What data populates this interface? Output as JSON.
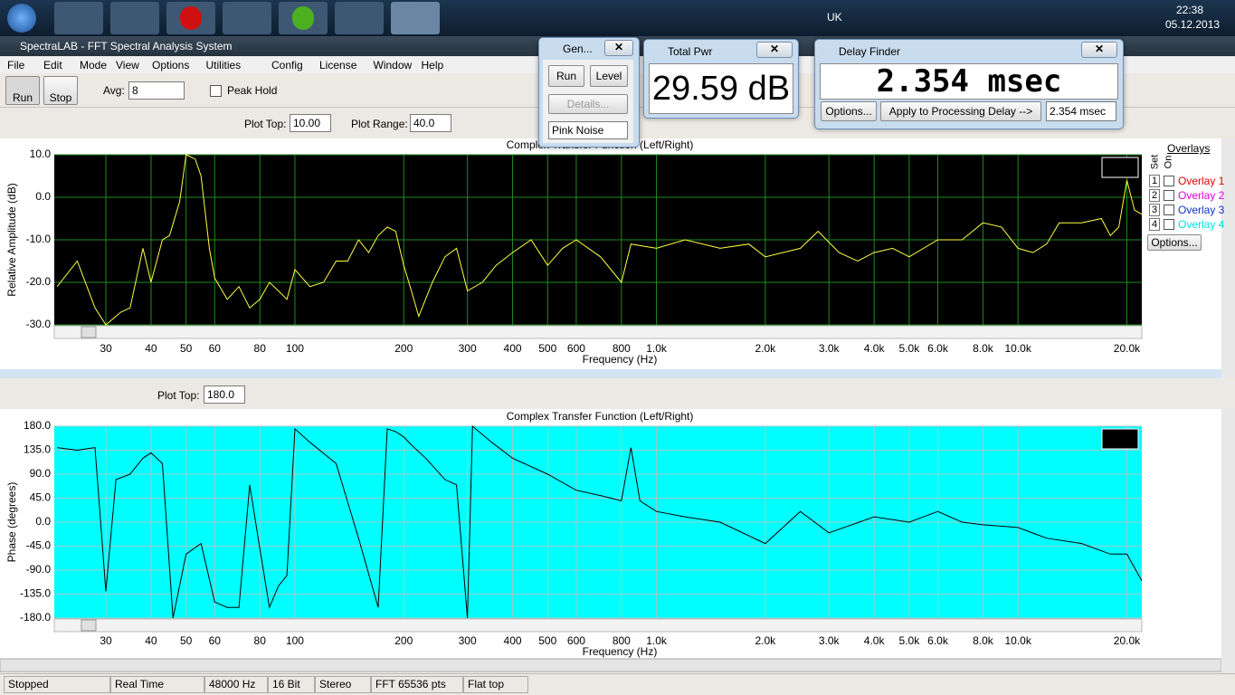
{
  "taskbar": {
    "language": "UK",
    "clock": "22:38",
    "date": "05.12.2013"
  },
  "window": {
    "title": "SpectraLAB - FFT Spectral Analysis System",
    "menu": [
      "File",
      "Edit",
      "Mode",
      "View",
      "Options",
      "Utilities",
      "Config",
      "License",
      "Window",
      "Help"
    ]
  },
  "toolbar": {
    "run": "Run",
    "stop": "Stop",
    "avg_label": "Avg:",
    "avg_value": "8",
    "peak_hold": "Peak Hold",
    "plot_top_label": "Plot Top:",
    "plot_top_value": "10.00",
    "plot_range_label": "Plot Range:",
    "plot_range_value": "40.0"
  },
  "toolbar2": {
    "plot_top_label": "Plot Top:",
    "plot_top_value": "180.0"
  },
  "generator": {
    "title": "Gen...",
    "run": "Run",
    "level": "Level",
    "details": "Details...",
    "signal": "Pink Noise"
  },
  "total_power": {
    "title": "Total Pwr",
    "value": "29.59 dB"
  },
  "delay_finder": {
    "title": "Delay Finder",
    "value": "2.354 msec",
    "options": "Options...",
    "apply": "Apply to Processing Delay -->",
    "result": "2.354 msec"
  },
  "overlays": {
    "title": "Overlays",
    "set": "Set",
    "on": "On",
    "options": "Options...",
    "items": [
      {
        "number": "1",
        "label": "Overlay 1",
        "color": "#e00000"
      },
      {
        "number": "2",
        "label": "Overlay 2",
        "color": "#e000e0"
      },
      {
        "number": "3",
        "label": "Overlay 3",
        "color": "#1030d0"
      },
      {
        "number": "4",
        "label": "Overlay 4",
        "color": "#00e0e0"
      }
    ]
  },
  "status_bar": [
    "Stopped",
    "Real Time",
    "48000 Hz",
    "16 Bit",
    "Stereo",
    "FFT 65536 pts",
    "Flat top"
  ],
  "chart_data": [
    {
      "type": "line",
      "title": "Complex Transfer Function (Left/Right)",
      "x_label": "Frequency (Hz)",
      "y_label": "Relative Amplitude (dB)",
      "log_x": true,
      "grid": true,
      "background": "#000000",
      "grid_color": "#1e8c1e",
      "color": "#ffff40",
      "xlim": [
        21.6,
        22000
      ],
      "ylim": [
        -30,
        10
      ],
      "yticks": [
        {
          "value": -30,
          "label": "-30.0"
        },
        {
          "value": -20,
          "label": "-20.0"
        },
        {
          "value": -10,
          "label": "-10.0"
        },
        {
          "value": 0,
          "label": "0.0"
        },
        {
          "value": 10,
          "label": "10.0"
        }
      ],
      "xticks": [
        30,
        40,
        50,
        60,
        80,
        100,
        200,
        300,
        400,
        500,
        600,
        800,
        {
          "value": 1000,
          "label": "1.0k"
        },
        {
          "value": 2000,
          "label": "2.0k"
        },
        {
          "value": 3000,
          "label": "3.0k"
        },
        {
          "value": 4000,
          "label": "4.0k"
        },
        {
          "value": 5000,
          "label": "5.0k"
        },
        {
          "value": 6000,
          "label": "6.0k"
        },
        {
          "value": 8000,
          "label": "8.0k"
        },
        {
          "value": 10000,
          "label": "10.0k"
        },
        {
          "value": 20000,
          "label": "20.0k"
        }
      ],
      "x": [
        22,
        25,
        28,
        30,
        33,
        35,
        38,
        40,
        43,
        45,
        48,
        50,
        53,
        55,
        58,
        60,
        65,
        70,
        75,
        80,
        85,
        90,
        95,
        100,
        110,
        120,
        130,
        140,
        150,
        160,
        170,
        180,
        190,
        200,
        210,
        220,
        240,
        260,
        280,
        300,
        330,
        360,
        400,
        450,
        500,
        550,
        600,
        700,
        800,
        850,
        1000,
        1200,
        1500,
        1800,
        2000,
        2500,
        2800,
        3200,
        3600,
        4000,
        4500,
        5000,
        6000,
        7000,
        8000,
        9000,
        10000,
        11000,
        12000,
        13000,
        15000,
        17000,
        18000,
        19000,
        20000,
        21000,
        22000
      ],
      "values": [
        -21,
        -15,
        -26,
        -30,
        -27,
        -26,
        -12,
        -20,
        -10,
        -9,
        -1,
        10,
        9,
        5,
        -12,
        -19,
        -24,
        -21,
        -26,
        -24,
        -20,
        -22,
        -24,
        -17,
        -21,
        -20,
        -15,
        -15,
        -10,
        -13,
        -9,
        -7,
        -8,
        -16,
        -22,
        -28,
        -20,
        -14,
        -12,
        -22,
        -20,
        -16,
        -13,
        -10,
        -16,
        -12,
        -10,
        -14,
        -20,
        -11,
        -12,
        -10,
        -12,
        -11,
        -14,
        -12,
        -8,
        -13,
        -15,
        -13,
        -12,
        -14,
        -10,
        -10,
        -6,
        -7,
        -12,
        -13,
        -11,
        -6,
        -6,
        -5,
        -9,
        -7,
        4,
        -3,
        -4
      ]
    },
    {
      "type": "line",
      "title": "Complex Transfer Function (Left/Right)",
      "x_label": "Frequency (Hz)",
      "y_label": "Phase (degrees)",
      "log_x": true,
      "grid": true,
      "background": "#00ffff",
      "grid_color": "#a0c8c8",
      "color": "#000000",
      "xlim": [
        21.6,
        22000
      ],
      "ylim": [
        -180,
        180
      ],
      "yticks": [
        {
          "value": -180,
          "label": "-180.0"
        },
        {
          "value": -135,
          "label": "-135.0"
        },
        {
          "value": -90,
          "label": "-90.0"
        },
        {
          "value": -45,
          "label": "-45.0"
        },
        {
          "value": 0,
          "label": "0.0"
        },
        {
          "value": 45,
          "label": "45.0"
        },
        {
          "value": 90,
          "label": "90.0"
        },
        {
          "value": 135,
          "label": "135.0"
        },
        {
          "value": 180,
          "label": "180.0"
        }
      ],
      "xticks": [
        30,
        40,
        50,
        60,
        80,
        100,
        200,
        300,
        400,
        500,
        600,
        800,
        {
          "value": 1000,
          "label": "1.0k"
        },
        {
          "value": 2000,
          "label": "2.0k"
        },
        {
          "value": 3000,
          "label": "3.0k"
        },
        {
          "value": 4000,
          "label": "4.0k"
        },
        {
          "value": 5000,
          "label": "5.0k"
        },
        {
          "value": 6000,
          "label": "6.0k"
        },
        {
          "value": 8000,
          "label": "8.0k"
        },
        {
          "value": 10000,
          "label": "10.0k"
        },
        {
          "value": 20000,
          "label": "20.0k"
        }
      ],
      "x": [
        22,
        25,
        28,
        30,
        32,
        35,
        38,
        40,
        43,
        46,
        50,
        55,
        60,
        65,
        70,
        75,
        80,
        85,
        90,
        95,
        100,
        110,
        130,
        150,
        170,
        180,
        190,
        200,
        210,
        230,
        260,
        280,
        300,
        310,
        350,
        400,
        500,
        600,
        700,
        800,
        850,
        900,
        1000,
        1200,
        1500,
        2000,
        2500,
        3000,
        4000,
        5000,
        6000,
        7000,
        8000,
        10000,
        12000,
        15000,
        18000,
        20000,
        22000
      ],
      "values": [
        140,
        135,
        140,
        -130,
        80,
        90,
        120,
        130,
        110,
        -180,
        -60,
        -40,
        -150,
        -160,
        -160,
        70,
        -50,
        -160,
        -120,
        -100,
        175,
        150,
        110,
        -30,
        -160,
        175,
        170,
        160,
        145,
        120,
        80,
        70,
        -180,
        180,
        150,
        120,
        90,
        60,
        50,
        40,
        140,
        40,
        20,
        10,
        0,
        -40,
        20,
        -20,
        10,
        0,
        20,
        0,
        -5,
        -10,
        -30,
        -40,
        -60,
        -60,
        -110
      ]
    }
  ]
}
